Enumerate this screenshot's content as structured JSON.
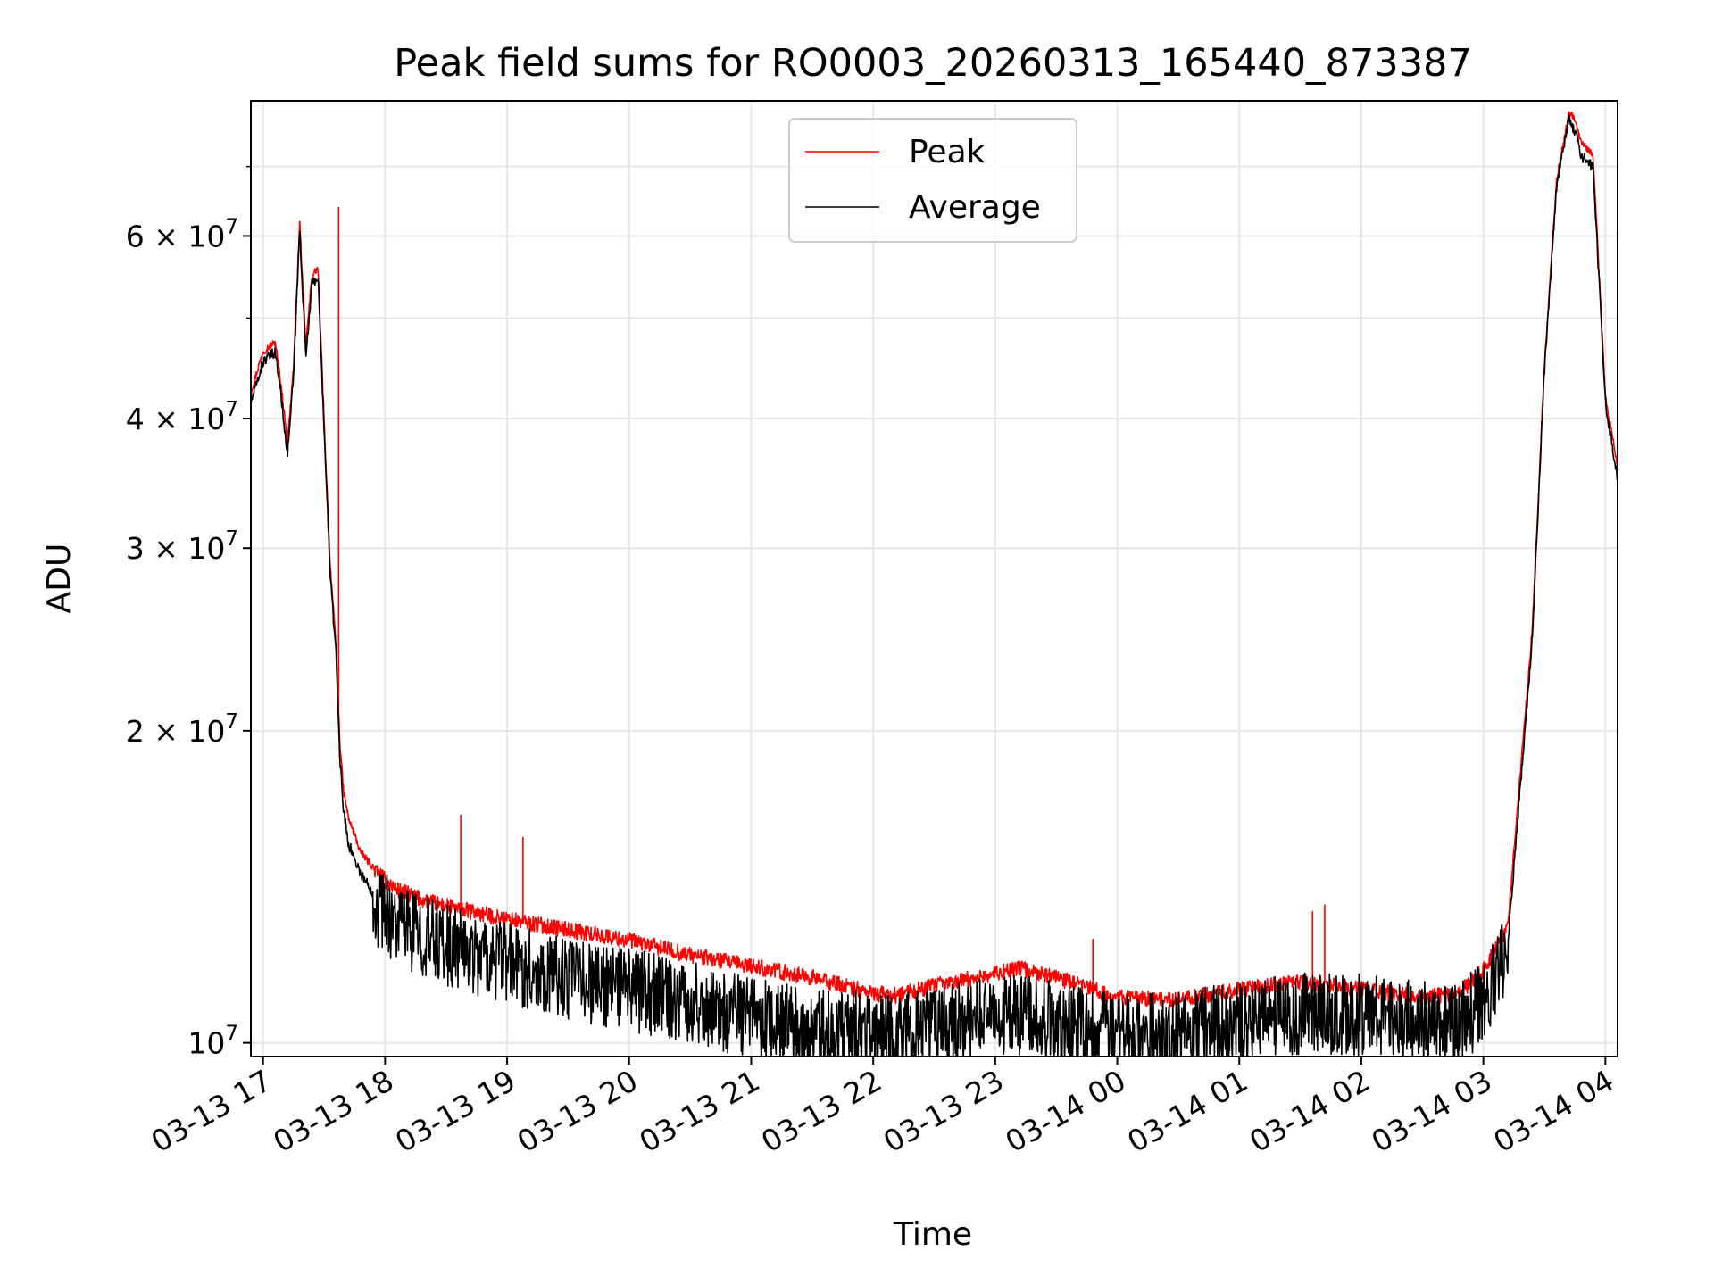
{
  "chart_data": {
    "type": "line",
    "title": "Peak field sums for RO0003_20260313_165440_873387",
    "xlabel": "Time",
    "ylabel": "ADU",
    "y_scale": "log",
    "ylim": [
      9700000,
      81000000
    ],
    "xlim_hours_since_2026-03-13_17:00": [
      -0.1,
      11.1
    ],
    "grid": true,
    "legend_position": "top-center",
    "x_ticks": [
      {
        "hour": 0,
        "label": "03-13 17"
      },
      {
        "hour": 1,
        "label": "03-13 18"
      },
      {
        "hour": 2,
        "label": "03-13 19"
      },
      {
        "hour": 3,
        "label": "03-13 20"
      },
      {
        "hour": 4,
        "label": "03-13 21"
      },
      {
        "hour": 5,
        "label": "03-13 22"
      },
      {
        "hour": 6,
        "label": "03-13 23"
      },
      {
        "hour": 7,
        "label": "03-14 00"
      },
      {
        "hour": 8,
        "label": "03-14 01"
      },
      {
        "hour": 9,
        "label": "03-14 02"
      },
      {
        "hour": 10,
        "label": "03-14 03"
      },
      {
        "hour": 11,
        "label": "03-14 04"
      }
    ],
    "y_major_ticks": [
      {
        "value": 10000000,
        "mantissa": "10",
        "exponent": "7"
      },
      {
        "value": 20000000,
        "mantissa": "2 × 10",
        "exponent": "7"
      },
      {
        "value": 30000000,
        "mantissa": "3 × 10",
        "exponent": "7"
      },
      {
        "value": 40000000,
        "mantissa": "4 × 10",
        "exponent": "7"
      },
      {
        "value": 60000000,
        "mantissa": "6 × 10",
        "exponent": "7"
      }
    ],
    "y_minor_ticks": [
      50000000,
      70000000
    ],
    "series": [
      {
        "name": "Peak",
        "color": "#ff0000",
        "x_hours": [
          -0.1,
          0.0,
          0.1,
          0.15,
          0.2,
          0.25,
          0.3,
          0.35,
          0.4,
          0.45,
          0.5,
          0.55,
          0.6,
          0.63,
          0.66,
          0.7,
          0.8,
          0.9,
          1.0,
          1.1,
          1.3,
          1.5,
          2.0,
          2.5,
          3.0,
          3.5,
          4.0,
          4.5,
          5.0,
          5.2,
          5.5,
          6.0,
          6.2,
          6.5,
          6.8,
          7.0,
          7.5,
          8.0,
          8.5,
          9.0,
          9.5,
          9.8,
          10.0,
          10.2,
          10.4,
          10.5,
          10.6,
          10.7,
          10.75,
          10.8,
          10.9,
          11.0,
          11.1
        ],
        "values": [
          42500000,
          46500000,
          47500000,
          43000000,
          38000000,
          45000000,
          62000000,
          47000000,
          55000000,
          56000000,
          40000000,
          29000000,
          24000000,
          19500000,
          17500000,
          16500000,
          15300000,
          14800000,
          14400000,
          14100000,
          13800000,
          13600000,
          13200000,
          12900000,
          12600000,
          12200000,
          11900000,
          11600000,
          11200000,
          11150000,
          11400000,
          11700000,
          11850000,
          11600000,
          11300000,
          11100000,
          11050000,
          11300000,
          11500000,
          11300000,
          11100000,
          11200000,
          11800000,
          13000000,
          25000000,
          45000000,
          68000000,
          79000000,
          78000000,
          74000000,
          72000000,
          42000000,
          36000000
        ],
        "spikes": [
          {
            "hour": 0.62,
            "value": 64000000
          },
          {
            "hour": 1.62,
            "value": 16600000
          },
          {
            "hour": 2.13,
            "value": 15800000
          },
          {
            "hour": 6.8,
            "value": 12600000
          },
          {
            "hour": 8.6,
            "value": 13400000
          },
          {
            "hour": 8.7,
            "value": 13600000
          },
          {
            "hour": 10.78,
            "value": 75000000
          }
        ]
      },
      {
        "name": "Average",
        "color": "#000000",
        "x_hours": [
          -0.1,
          0.0,
          0.1,
          0.15,
          0.2,
          0.25,
          0.3,
          0.35,
          0.4,
          0.45,
          0.5,
          0.55,
          0.6,
          0.63,
          0.66,
          0.7,
          0.8,
          0.9,
          1.0,
          1.1,
          1.3,
          1.5,
          2.0,
          2.5,
          3.0,
          3.5,
          4.0,
          4.5,
          5.0,
          5.2,
          5.5,
          6.0,
          6.2,
          6.5,
          6.8,
          7.0,
          7.5,
          8.0,
          8.5,
          9.0,
          9.5,
          9.8,
          10.0,
          10.2,
          10.4,
          10.5,
          10.6,
          10.7,
          10.75,
          10.8,
          10.9,
          11.0,
          11.1
        ],
        "values": [
          41500000,
          45500000,
          46500000,
          42000000,
          37000000,
          44000000,
          61000000,
          46000000,
          54000000,
          55000000,
          39000000,
          28500000,
          23500000,
          18800000,
          16800000,
          15600000,
          14600000,
          14000000,
          13700000,
          13300000,
          13000000,
          12700000,
          12200000,
          11800000,
          11500000,
          11200000,
          10800000,
          10500000,
          10500000,
          10450000,
          10600000,
          10800000,
          10900000,
          10700000,
          10500000,
          10400000,
          10450000,
          10700000,
          10900000,
          10900000,
          10700000,
          10650000,
          11200000,
          12500000,
          24500000,
          44500000,
          67000000,
          78000000,
          76000000,
          72000000,
          70000000,
          41500000,
          35000000
        ]
      }
    ]
  }
}
